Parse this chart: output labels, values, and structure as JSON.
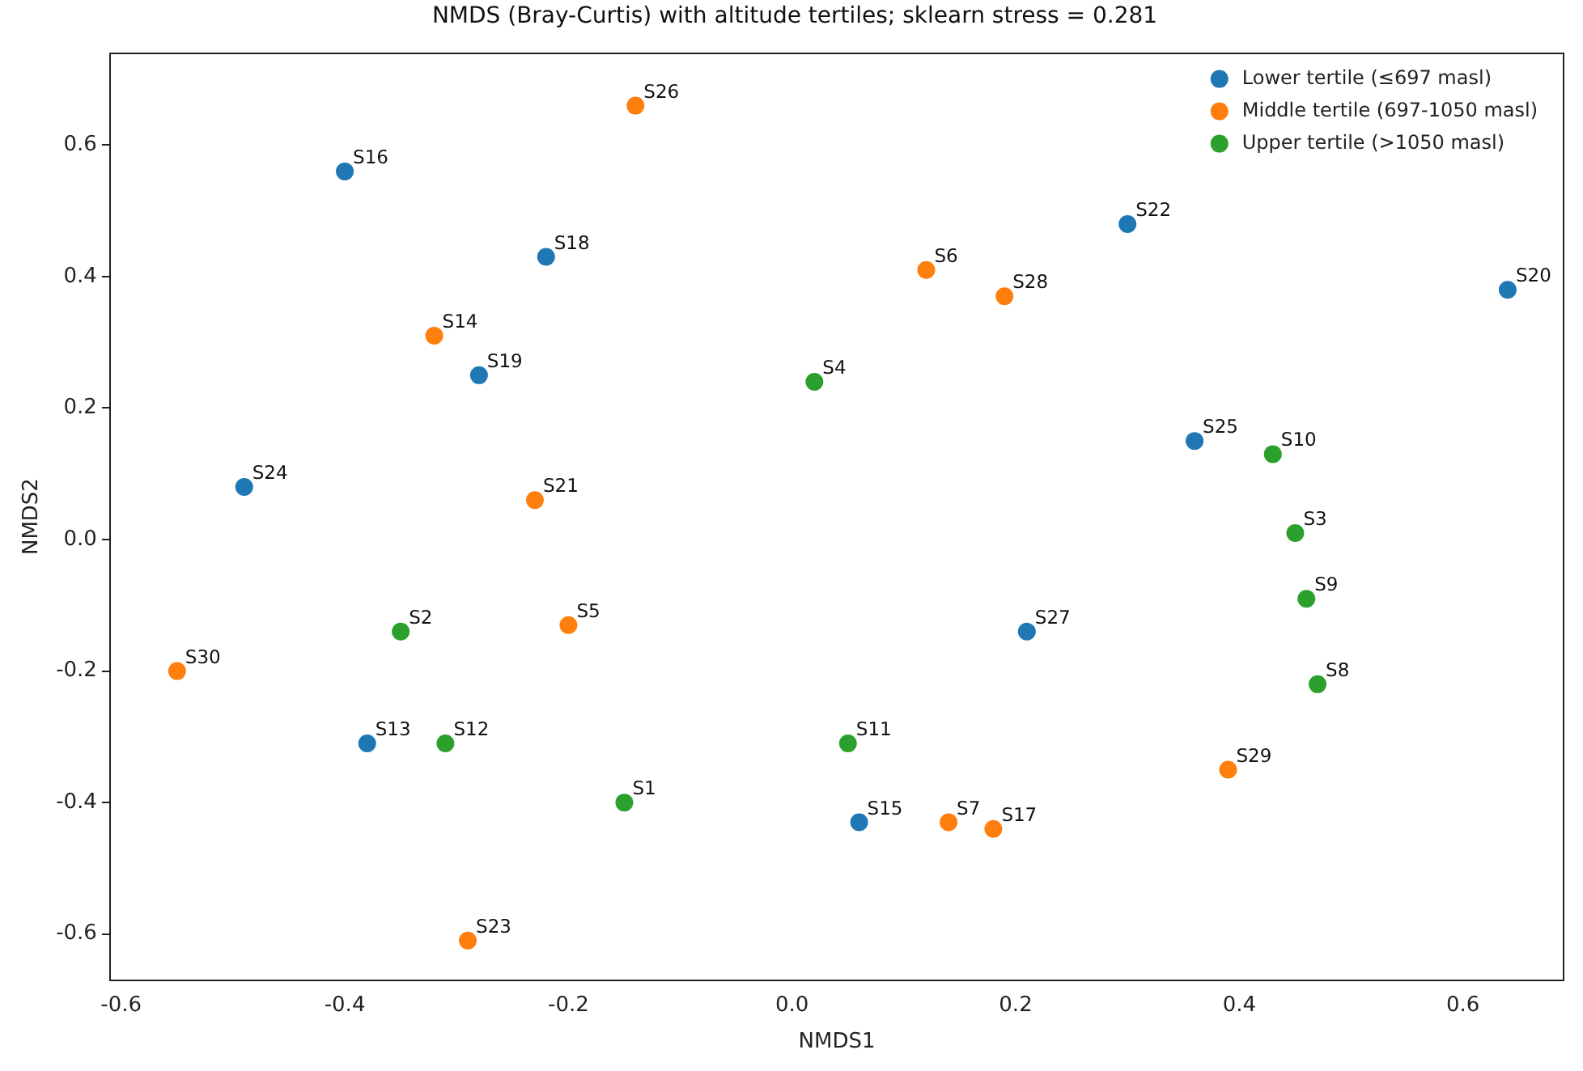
{
  "chart_data": {
    "type": "scatter",
    "title": "NMDS (Bray-Curtis) with altitude tertiles; sklearn stress = 0.281",
    "xlabel": "NMDS1",
    "ylabel": "NMDS2",
    "xlim": [
      -0.61,
      0.69
    ],
    "ylim": [
      -0.67,
      0.74
    ],
    "xticks": [
      {
        "value": -0.6,
        "label": "-0.6"
      },
      {
        "value": -0.4,
        "label": "-0.4"
      },
      {
        "value": -0.2,
        "label": "-0.2"
      },
      {
        "value": 0,
        "label": "0.0"
      },
      {
        "value": 0.2,
        "label": "0.2"
      },
      {
        "value": 0.4,
        "label": "0.4"
      },
      {
        "value": 0.6,
        "label": "0.6"
      }
    ],
    "yticks": [
      {
        "value": -0.6,
        "label": "-0.6"
      },
      {
        "value": -0.4,
        "label": "-0.4"
      },
      {
        "value": -0.2,
        "label": "-0.2"
      },
      {
        "value": 0,
        "label": "0.0"
      },
      {
        "value": 0.2,
        "label": "0.2"
      },
      {
        "value": 0.4,
        "label": "0.4"
      },
      {
        "value": 0.6,
        "label": "0.6"
      }
    ],
    "grid": false,
    "legend": "top right",
    "marker": "circle",
    "series": [
      {
        "name": "Lower tertile (≤697 masl)",
        "color": "#1f77b4",
        "x": [
          -0.4,
          -0.22,
          0.3,
          0.64,
          -0.28,
          0.36,
          -0.49,
          0.21,
          -0.38,
          0.06
        ],
        "values": [
          0.56,
          0.43,
          0.48,
          0.38,
          0.25,
          0.15,
          0.08,
          -0.14,
          -0.31,
          -0.43
        ]
      },
      {
        "name": "Middle tertile (697-1050 masl)",
        "color": "#ff7f0e",
        "x": [
          -0.14,
          0.12,
          0.19,
          -0.32,
          -0.23,
          -0.2,
          -0.55,
          0.39,
          0.14,
          0.18,
          -0.29
        ],
        "values": [
          0.66,
          0.41,
          0.37,
          0.31,
          0.06,
          -0.13,
          -0.2,
          -0.35,
          -0.43,
          -0.44,
          -0.61
        ]
      },
      {
        "name": "Upper tertile (>1050 masl)",
        "color": "#2ca02c",
        "x": [
          0.02,
          0.43,
          0.45,
          0.46,
          -0.35,
          0.47,
          -0.31,
          0.05,
          -0.15
        ],
        "values": [
          0.24,
          0.13,
          0.01,
          -0.09,
          -0.14,
          -0.22,
          -0.31,
          -0.31,
          -0.4
        ]
      }
    ],
    "annotations": [
      {
        "text": "S16",
        "x": -0.4,
        "y": 0.56
      },
      {
        "text": "S18",
        "x": -0.22,
        "y": 0.43
      },
      {
        "text": "S22",
        "x": 0.3,
        "y": 0.48
      },
      {
        "text": "S20",
        "x": 0.64,
        "y": 0.38
      },
      {
        "text": "S19",
        "x": -0.28,
        "y": 0.25
      },
      {
        "text": "S25",
        "x": 0.36,
        "y": 0.15
      },
      {
        "text": "S24",
        "x": -0.49,
        "y": 0.08
      },
      {
        "text": "S27",
        "x": 0.21,
        "y": -0.14
      },
      {
        "text": "S13",
        "x": -0.38,
        "y": -0.31
      },
      {
        "text": "S15",
        "x": 0.06,
        "y": -0.43
      },
      {
        "text": "S26",
        "x": -0.14,
        "y": 0.66
      },
      {
        "text": "S6",
        "x": 0.12,
        "y": 0.41
      },
      {
        "text": "S28",
        "x": 0.19,
        "y": 0.37
      },
      {
        "text": "S14",
        "x": -0.32,
        "y": 0.31
      },
      {
        "text": "S21",
        "x": -0.23,
        "y": 0.06
      },
      {
        "text": "S5",
        "x": -0.2,
        "y": -0.13
      },
      {
        "text": "S30",
        "x": -0.55,
        "y": -0.2
      },
      {
        "text": "S29",
        "x": 0.39,
        "y": -0.35
      },
      {
        "text": "S7",
        "x": 0.14,
        "y": -0.43
      },
      {
        "text": "S17",
        "x": 0.18,
        "y": -0.44
      },
      {
        "text": "S23",
        "x": -0.29,
        "y": -0.61
      },
      {
        "text": "S4",
        "x": 0.02,
        "y": 0.24
      },
      {
        "text": "S10",
        "x": 0.43,
        "y": 0.13
      },
      {
        "text": "S3",
        "x": 0.45,
        "y": 0.01
      },
      {
        "text": "S9",
        "x": 0.46,
        "y": -0.09
      },
      {
        "text": "S2",
        "x": -0.35,
        "y": -0.14
      },
      {
        "text": "S8",
        "x": 0.47,
        "y": -0.22
      },
      {
        "text": "S12",
        "x": -0.31,
        "y": -0.31
      },
      {
        "text": "S11",
        "x": 0.05,
        "y": -0.31
      },
      {
        "text": "S1",
        "x": -0.15,
        "y": -0.4
      }
    ]
  }
}
